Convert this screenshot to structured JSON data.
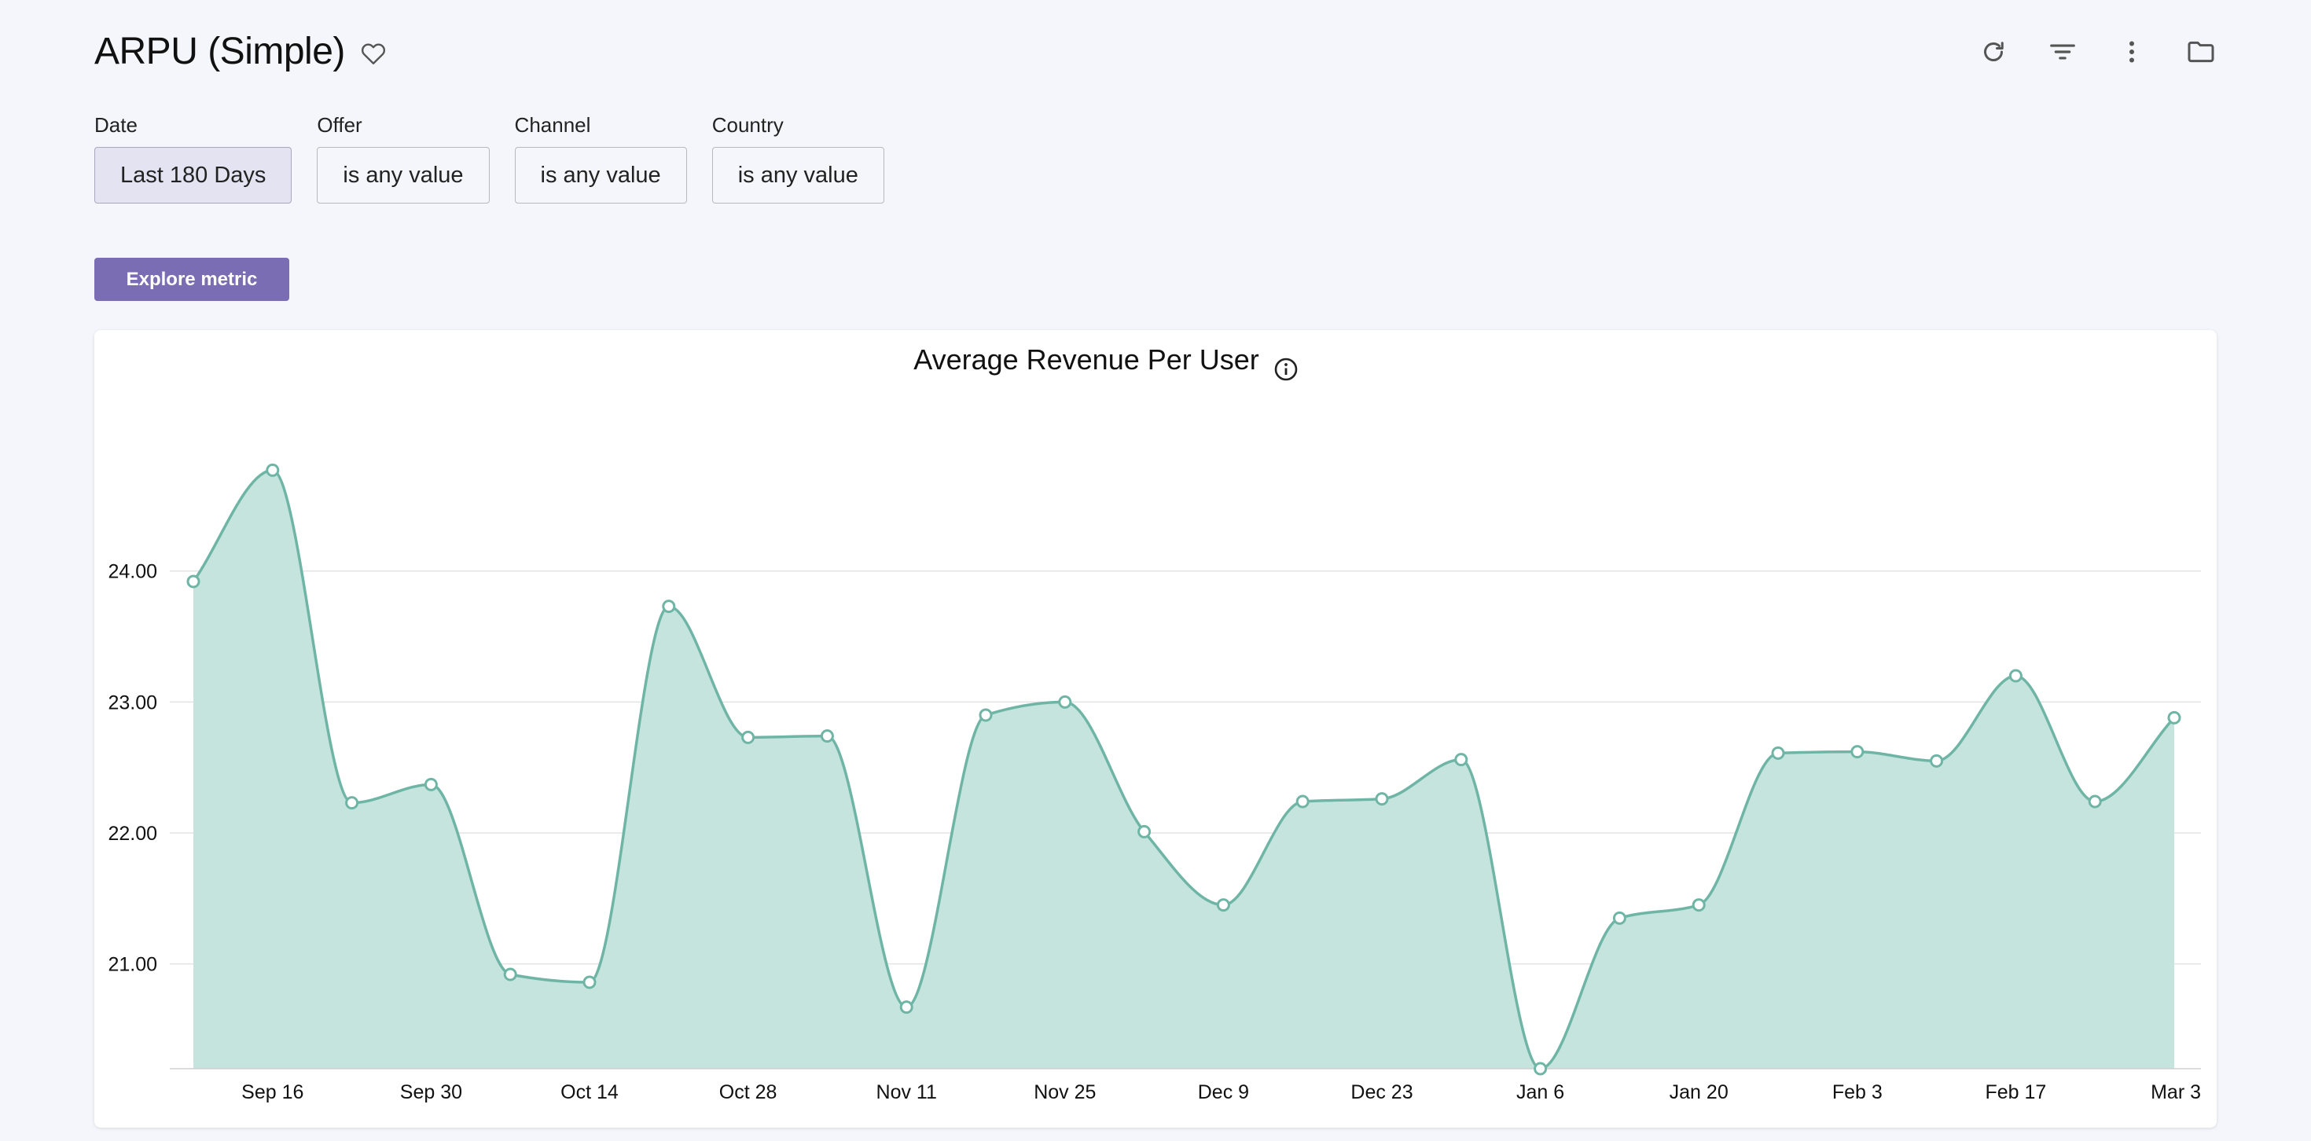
{
  "header": {
    "title": "ARPU (Simple)"
  },
  "toolbar": {
    "icons": [
      "refresh-icon",
      "filter-icon",
      "more-vertical-icon",
      "folder-icon"
    ]
  },
  "filters": [
    {
      "label": "Date",
      "value": "Last 180 Days",
      "active": true
    },
    {
      "label": "Offer",
      "value": "is any value",
      "active": false
    },
    {
      "label": "Channel",
      "value": "is any value",
      "active": false
    },
    {
      "label": "Country",
      "value": "is any value",
      "active": false
    }
  ],
  "explore_button": "Explore metric",
  "colors": {
    "accent": "#7a6db3",
    "series_line": "#6fb5a6",
    "series_fill": "#c6e4de",
    "grid": "#e3e3e3"
  },
  "chart_data": {
    "type": "area",
    "title": "Average Revenue Per User",
    "xlabel": "",
    "ylabel": "",
    "ylim": [
      20.2,
      25.0
    ],
    "x_range": [
      "2023-09-09",
      "2024-03-03"
    ],
    "yticks": [
      21.0,
      22.0,
      23.0,
      24.0
    ],
    "ytick_labels": [
      "21.00",
      "22.00",
      "23.00",
      "24.00"
    ],
    "xtick_labels": [
      {
        "label": "Sep 16",
        "day": 7
      },
      {
        "label": "Sep 30",
        "day": 21
      },
      {
        "label": "Oct 14",
        "day": 35
      },
      {
        "label": "Oct 28",
        "day": 49
      },
      {
        "label": "Nov 11",
        "day": 63
      },
      {
        "label": "Nov 25",
        "day": 77
      },
      {
        "label": "Dec 9",
        "day": 91
      },
      {
        "label": "Dec 23",
        "day": 105
      },
      {
        "label": "Jan 6",
        "day": 119
      },
      {
        "label": "Jan 20",
        "day": 133
      },
      {
        "label": "Feb 3",
        "day": 147
      },
      {
        "label": "Feb 17",
        "day": 161
      },
      {
        "label": "Mar 3",
        "day": 175
      }
    ],
    "grid": true,
    "series": [
      {
        "name": "ARPU",
        "points": [
          {
            "day": 0,
            "value": 23.92
          },
          {
            "day": 7,
            "value": 24.77
          },
          {
            "day": 14,
            "value": 22.23
          },
          {
            "day": 21,
            "value": 22.37
          },
          {
            "day": 28,
            "value": 20.92
          },
          {
            "day": 35,
            "value": 20.86
          },
          {
            "day": 42,
            "value": 23.73
          },
          {
            "day": 49,
            "value": 22.73
          },
          {
            "day": 56,
            "value": 22.74
          },
          {
            "day": 63,
            "value": 20.67
          },
          {
            "day": 70,
            "value": 22.9
          },
          {
            "day": 77,
            "value": 23.0
          },
          {
            "day": 84,
            "value": 22.01
          },
          {
            "day": 91,
            "value": 21.45
          },
          {
            "day": 98,
            "value": 22.24
          },
          {
            "day": 105,
            "value": 22.26
          },
          {
            "day": 112,
            "value": 22.56
          },
          {
            "day": 119,
            "value": 20.2
          },
          {
            "day": 126,
            "value": 21.35
          },
          {
            "day": 133,
            "value": 21.45
          },
          {
            "day": 140,
            "value": 22.61
          },
          {
            "day": 147,
            "value": 22.62
          },
          {
            "day": 154,
            "value": 22.55
          },
          {
            "day": 161,
            "value": 23.2
          },
          {
            "day": 168,
            "value": 22.24
          },
          {
            "day": 175,
            "value": 22.88
          }
        ]
      }
    ]
  }
}
